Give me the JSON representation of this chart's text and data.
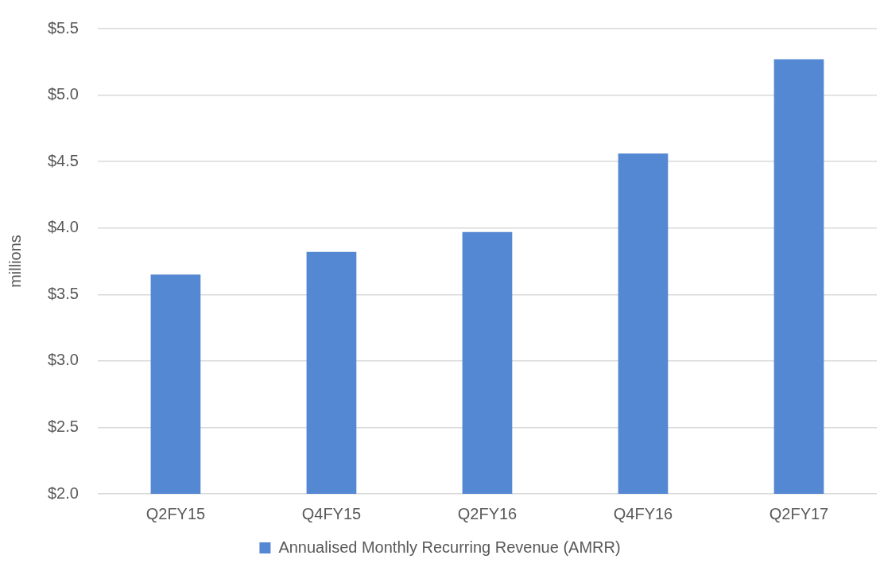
{
  "chart_data": {
    "type": "bar",
    "ylabel": "millions",
    "categories": [
      "Q2FY15",
      "Q4FY15",
      "Q2FY16",
      "Q4FY16",
      "Q2FY17"
    ],
    "series": [
      {
        "name": "Annualised Monthly Recurring Revenue (AMRR)",
        "color": "#5588d3",
        "values": [
          3.65,
          3.82,
          3.97,
          4.56,
          5.27
        ]
      }
    ],
    "ylim": [
      2.0,
      5.5
    ],
    "yticks": [
      {
        "value": 2.0,
        "label": "$2.0"
      },
      {
        "value": 2.5,
        "label": "$2.5"
      },
      {
        "value": 3.0,
        "label": "$3.0"
      },
      {
        "value": 3.5,
        "label": "$3.5"
      },
      {
        "value": 4.0,
        "label": "$4.0"
      },
      {
        "value": 4.5,
        "label": "$4.5"
      },
      {
        "value": 5.0,
        "label": "$5.0"
      },
      {
        "value": 5.5,
        "label": "$5.5"
      }
    ],
    "grid": "y",
    "legend": "bottom"
  }
}
